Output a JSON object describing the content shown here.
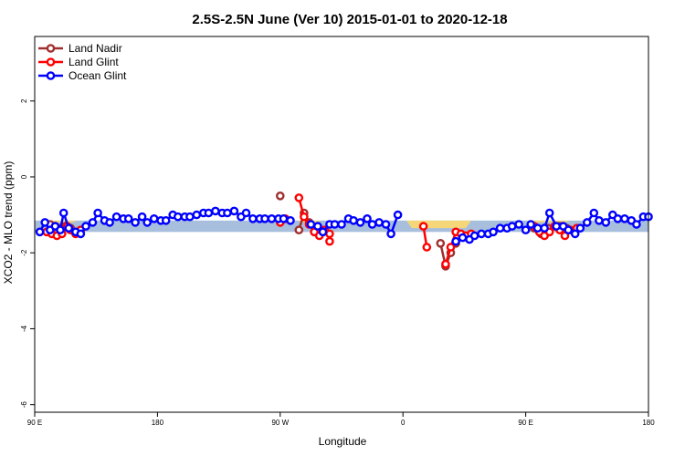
{
  "chart_data": {
    "type": "line",
    "title": "2.5S-2.5N June (Ver 10)   2015-01-01 to 2020-12-18",
    "xlabel": "Longitude",
    "ylabel": "XCO2 - MLO trend (ppm)",
    "xlim": [
      90,
      450
    ],
    "ylim": [
      -6.2,
      3.7
    ],
    "x_ticks": [
      {
        "value": 90,
        "label": "90 E"
      },
      {
        "value": 162,
        "label": "180"
      },
      {
        "value": 234,
        "label": "90 W"
      },
      {
        "value": 306,
        "label": "0"
      },
      {
        "value": 378,
        "label": "90 E"
      },
      {
        "value": 450,
        "label": "180"
      }
    ],
    "y_ticks": [
      -6,
      -4,
      -2,
      0,
      2
    ],
    "legend_position": "top-left",
    "band": {
      "upper": -1.15,
      "lower": -1.45,
      "color": "#a7bedc",
      "highlight_color": "#f5d77a",
      "highlight_segments": [
        {
          "x": [
            99,
            115
          ],
          "upper": -1.15,
          "top": -1.2
        },
        {
          "x": [
            244,
            258
          ],
          "upper": -1.15,
          "top": -1.2
        },
        {
          "x": [
            308,
            346
          ],
          "upper": -1.15,
          "top": -1.35
        },
        {
          "x": [
            378,
            404
          ],
          "upper": -1.15,
          "top": -1.2
        }
      ]
    },
    "series": [
      {
        "name": "Land Nadir",
        "color": "#a0302f",
        "segments": [
          [
            [
              99,
              -1.25
            ],
            [
              102,
              -1.3
            ],
            [
              105,
              -1.35
            ],
            [
              108,
              -1.3
            ],
            [
              111,
              -1.35
            ]
          ],
          [
            [
              234,
              -0.5
            ]
          ],
          [
            [
              245,
              -1.4
            ],
            [
              248,
              -0.95
            ],
            [
              251,
              -1.2
            ]
          ],
          [
            [
              328,
              -1.75
            ],
            [
              331,
              -2.35
            ],
            [
              334,
              -2.0
            ],
            [
              337,
              -1.75
            ]
          ],
          [
            [
              383,
              -1.35
            ],
            [
              387,
              -1.5
            ],
            [
              391,
              -1.35
            ]
          ],
          [
            [
              398,
              -1.3
            ],
            [
              402,
              -1.35
            ]
          ]
        ]
      },
      {
        "name": "Land Glint",
        "color": "#ff0000",
        "segments": [
          [
            [
              97,
              -1.45
            ],
            [
              100,
              -1.5
            ],
            [
              103,
              -1.55
            ],
            [
              106,
              -1.5
            ],
            [
              109,
              -1.3
            ],
            [
              111,
              -1.4
            ],
            [
              114,
              -1.5
            ],
            [
              117,
              -1.4
            ]
          ],
          [
            [
              234,
              -1.2
            ],
            [
              237,
              -1.1
            ]
          ],
          [
            [
              245,
              -0.55
            ],
            [
              248,
              -1.05
            ],
            [
              251,
              -1.25
            ],
            [
              254,
              -1.45
            ],
            [
              257,
              -1.55
            ],
            [
              260,
              -1.4
            ],
            [
              263,
              -1.5
            ],
            [
              263,
              -1.7
            ]
          ],
          [
            [
              318,
              -1.3
            ],
            [
              320,
              -1.85
            ]
          ],
          [
            [
              331,
              -2.3
            ],
            [
              334,
              -1.85
            ],
            [
              337,
              -1.45
            ],
            [
              340,
              -1.5
            ],
            [
              343,
              -1.55
            ],
            [
              346,
              -1.5
            ]
          ],
          [
            [
              383,
              -1.3
            ],
            [
              386,
              -1.45
            ],
            [
              389,
              -1.55
            ],
            [
              392,
              -1.45
            ],
            [
              395,
              -1.3
            ],
            [
              398,
              -1.4
            ],
            [
              401,
              -1.55
            ],
            [
              404,
              -1.4
            ],
            [
              408,
              -1.35
            ]
          ]
        ]
      },
      {
        "name": "Ocean Glint",
        "color": "#0000ff",
        "segments": [
          [
            [
              93,
              -1.45
            ],
            [
              96,
              -1.2
            ],
            [
              99,
              -1.4
            ],
            [
              102,
              -1.3
            ],
            [
              105,
              -1.4
            ],
            [
              107,
              -0.95
            ],
            [
              110,
              -1.35
            ],
            [
              114,
              -1.45
            ],
            [
              117,
              -1.5
            ],
            [
              120,
              -1.3
            ],
            [
              124,
              -1.2
            ],
            [
              127,
              -0.95
            ],
            [
              131,
              -1.15
            ],
            [
              134,
              -1.2
            ],
            [
              138,
              -1.05
            ],
            [
              142,
              -1.1
            ],
            [
              145,
              -1.1
            ],
            [
              149,
              -1.2
            ],
            [
              153,
              -1.05
            ],
            [
              156,
              -1.2
            ],
            [
              160,
              -1.1
            ],
            [
              164,
              -1.15
            ],
            [
              167,
              -1.15
            ],
            [
              171,
              -1.0
            ],
            [
              174,
              -1.05
            ],
            [
              178,
              -1.05
            ],
            [
              181,
              -1.05
            ],
            [
              185,
              -1.0
            ],
            [
              189,
              -0.95
            ],
            [
              192,
              -0.95
            ],
            [
              196,
              -0.9
            ],
            [
              200,
              -0.95
            ],
            [
              203,
              -0.95
            ],
            [
              207,
              -0.9
            ],
            [
              211,
              -1.05
            ],
            [
              214,
              -0.95
            ],
            [
              218,
              -1.1
            ],
            [
              222,
              -1.1
            ],
            [
              225,
              -1.1
            ],
            [
              229,
              -1.1
            ],
            [
              233,
              -1.1
            ],
            [
              236,
              -1.1
            ],
            [
              240,
              -1.15
            ]
          ],
          [
            [
              252,
              -1.25
            ],
            [
              256,
              -1.3
            ],
            [
              259,
              -1.45
            ],
            [
              263,
              -1.25
            ],
            [
              266,
              -1.25
            ],
            [
              270,
              -1.25
            ],
            [
              274,
              -1.1
            ],
            [
              277,
              -1.15
            ],
            [
              281,
              -1.2
            ],
            [
              285,
              -1.1
            ],
            [
              288,
              -1.25
            ],
            [
              292,
              -1.2
            ],
            [
              296,
              -1.25
            ],
            [
              299,
              -1.5
            ],
            [
              303,
              -1.0
            ]
          ],
          [
            [
              337,
              -1.7
            ],
            [
              341,
              -1.6
            ],
            [
              345,
              -1.65
            ],
            [
              348,
              -1.55
            ],
            [
              352,
              -1.5
            ],
            [
              356,
              -1.5
            ],
            [
              359,
              -1.45
            ],
            [
              363,
              -1.35
            ],
            [
              367,
              -1.35
            ],
            [
              370,
              -1.3
            ],
            [
              374,
              -1.25
            ],
            [
              378,
              -1.4
            ],
            [
              381,
              -1.25
            ],
            [
              385,
              -1.35
            ],
            [
              389,
              -1.35
            ],
            [
              392,
              -0.95
            ],
            [
              396,
              -1.3
            ],
            [
              400,
              -1.3
            ],
            [
              403,
              -1.4
            ],
            [
              407,
              -1.5
            ],
            [
              410,
              -1.35
            ],
            [
              414,
              -1.2
            ],
            [
              418,
              -0.95
            ],
            [
              421,
              -1.15
            ],
            [
              425,
              -1.2
            ],
            [
              429,
              -1.0
            ],
            [
              432,
              -1.1
            ],
            [
              436,
              -1.1
            ],
            [
              440,
              -1.15
            ],
            [
              443,
              -1.25
            ],
            [
              447,
              -1.05
            ],
            [
              450,
              -1.05
            ]
          ]
        ]
      }
    ]
  }
}
